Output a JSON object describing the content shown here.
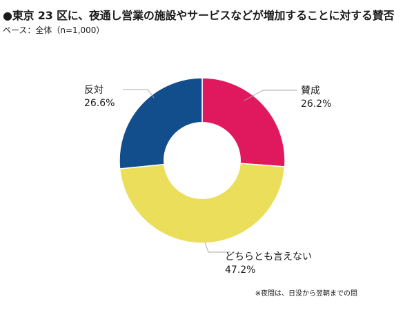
{
  "header": {
    "title": "●東京 23 区に、夜通し営業の施設やサービスなどが増加することに対する賛否",
    "base": "ベース：全体（n=1,000）"
  },
  "chart_data": {
    "type": "pie",
    "donut": true,
    "unit": "%",
    "slices": [
      {
        "label": "賛成",
        "value": 26.2,
        "value_text": "26.2%",
        "color": "#e0195e"
      },
      {
        "label": "どちらとも言えない",
        "value": 47.2,
        "value_text": "47.2%",
        "color": "#ebde5a"
      },
      {
        "label": "反対",
        "value": 26.6,
        "value_text": "26.6%",
        "color": "#124d8c"
      }
    ],
    "leader_line_color": "#aaaaaa"
  },
  "footnote": "※夜間は、日没から翌朝までの間"
}
